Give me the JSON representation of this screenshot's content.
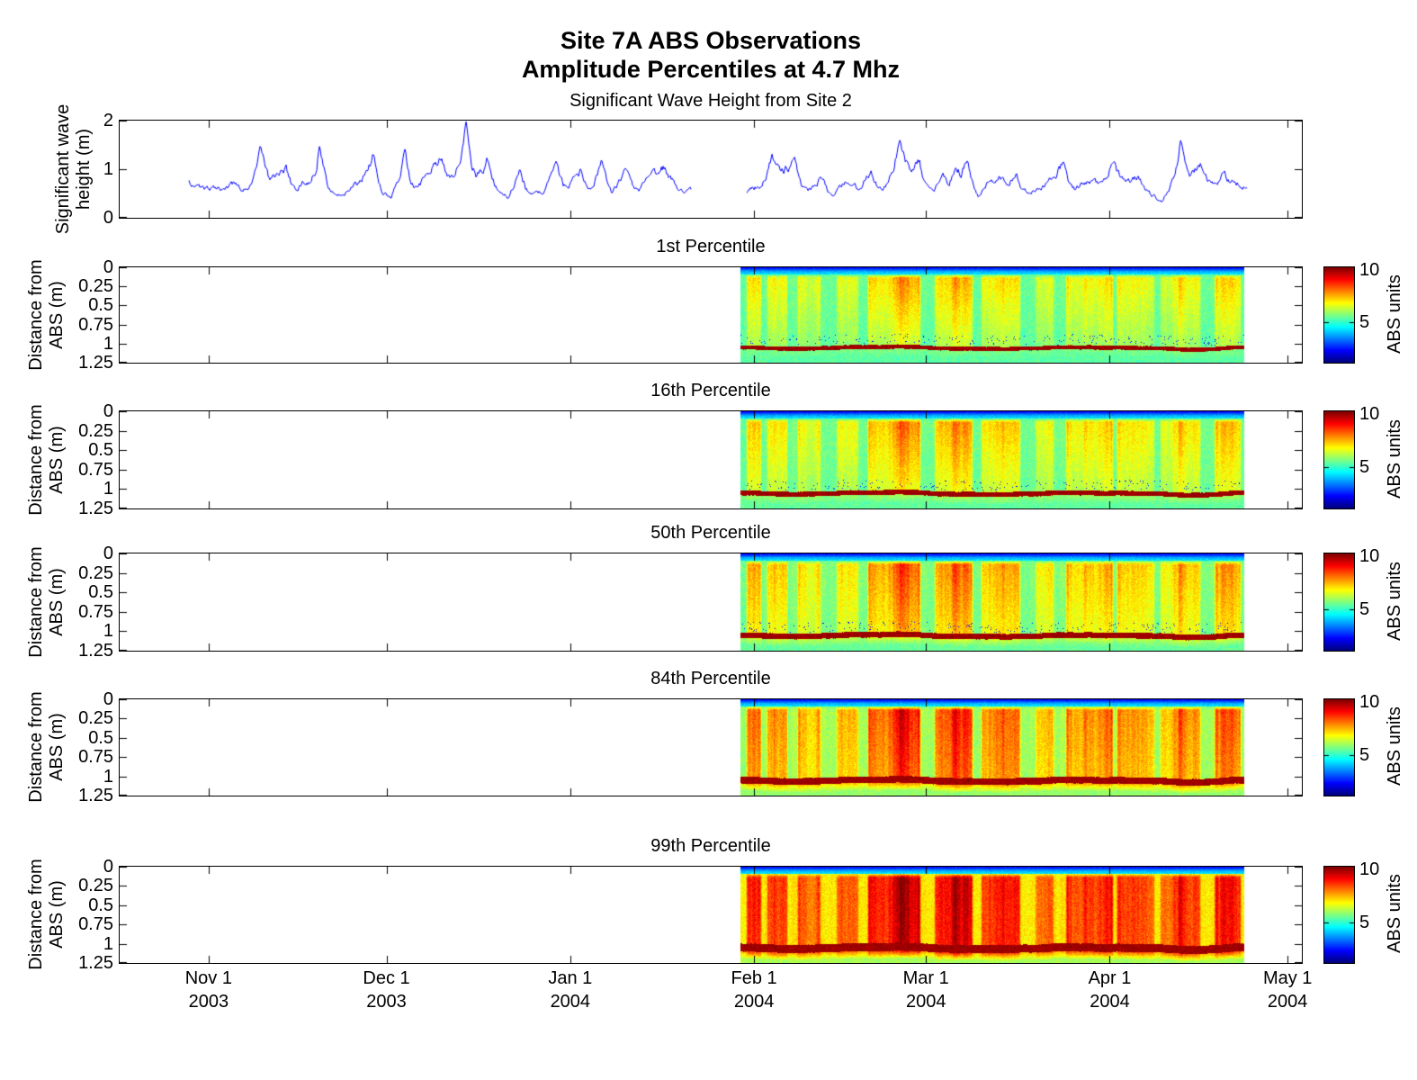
{
  "figure": {
    "title_line1": "Site 7A ABS Observations",
    "title_line2": "Amplitude Percentiles at 4.7 Mhz"
  },
  "wave_panel": {
    "title": "Significant Wave Height from Site 2",
    "ylabel_line1": "Significant wave",
    "ylabel_line2": "height (m)",
    "ytick_labels": [
      "2",
      "1",
      "0"
    ]
  },
  "heatmap_panels": {
    "titles": [
      "1st Percentile",
      "16th Percentile",
      "50th Percentile",
      "84th Percentile",
      "99th Percentile"
    ],
    "ylabel_line1": "Distance from",
    "ylabel_line2": "ABS (m)",
    "ytick_labels": [
      "0",
      "0.25",
      "0.5",
      "0.75",
      "1",
      "1.25"
    ]
  },
  "colorbar": {
    "tick_top": "10",
    "tick_mid": "5",
    "label": "ABS units"
  },
  "x_axis": {
    "tick_labels": [
      [
        "Nov 1",
        "2003"
      ],
      [
        "Dec 1",
        "2003"
      ],
      [
        "Jan 1",
        "2004"
      ],
      [
        "Feb 1",
        "2004"
      ],
      [
        "Mar 1",
        "2004"
      ],
      [
        "Apr 1",
        "2004"
      ],
      [
        "May 1",
        "2004"
      ]
    ]
  },
  "chart_data": {
    "type": "multi-panel",
    "x_axis": {
      "start_date": "2003-10-17",
      "end_date": "2004-05-03",
      "span_days": 199.4,
      "tick_days": [
        15,
        45,
        76,
        107,
        136,
        167,
        197
      ],
      "tick_dates": [
        "2003-11-01",
        "2003-12-01",
        "2004-01-01",
        "2004-02-01",
        "2004-03-01",
        "2004-04-01",
        "2004-05-01"
      ]
    },
    "wave_series": {
      "type": "line",
      "color": "#0000FF",
      "ylabel": "Significant wave height (m)",
      "ylim": [
        0,
        2
      ],
      "yticks": [
        0,
        1,
        2
      ],
      "x_unit": "days since 2003-10-17",
      "segments": [
        [
          [
            11.7,
            0.75
          ],
          [
            13.5,
            0.62
          ],
          [
            14.7,
            0.58
          ],
          [
            16.5,
            0.66
          ],
          [
            17.8,
            0.6
          ],
          [
            19.5,
            0.68
          ],
          [
            20.8,
            0.55
          ],
          [
            22.3,
            0.72
          ],
          [
            23.1,
            0.95
          ],
          [
            23.8,
            1.45
          ],
          [
            24.8,
            1.0
          ],
          [
            25.3,
            0.78
          ],
          [
            26.6,
            0.9
          ],
          [
            28.1,
            1.0
          ],
          [
            29,
            0.68
          ],
          [
            29.9,
            0.62
          ],
          [
            31.2,
            0.75
          ],
          [
            32.2,
            0.78
          ],
          [
            33.2,
            1.05
          ],
          [
            33.7,
            1.5
          ],
          [
            34.6,
            0.95
          ],
          [
            35.2,
            0.68
          ],
          [
            36.4,
            0.52
          ],
          [
            37.2,
            0.45
          ],
          [
            38.8,
            0.6
          ],
          [
            40.5,
            0.72
          ],
          [
            41.9,
            0.95
          ],
          [
            42.8,
            1.3
          ],
          [
            43.7,
            0.7
          ],
          [
            44.3,
            0.52
          ],
          [
            45.8,
            0.42
          ],
          [
            47.2,
            0.85
          ],
          [
            48.1,
            1.4
          ],
          [
            49,
            0.8
          ],
          [
            49.9,
            0.62
          ],
          [
            51.4,
            0.8
          ],
          [
            52.4,
            0.92
          ],
          [
            54.2,
            1.25
          ],
          [
            55.4,
            0.95
          ],
          [
            56.4,
            0.88
          ],
          [
            57.6,
            1.2
          ],
          [
            58.4,
            1.95
          ],
          [
            59.4,
            1.1
          ],
          [
            60.2,
            0.88
          ],
          [
            61.3,
            1.0
          ],
          [
            62.1,
            1.2
          ],
          [
            63.2,
            0.72
          ],
          [
            64,
            0.5
          ],
          [
            65.6,
            0.42
          ],
          [
            66.7,
            0.7
          ],
          [
            67.5,
            1.05
          ],
          [
            68.5,
            0.62
          ],
          [
            69.3,
            0.5
          ],
          [
            70.6,
            0.48
          ],
          [
            71.6,
            0.55
          ],
          [
            72.8,
            0.82
          ],
          [
            73.6,
            1.0
          ],
          [
            74.8,
            0.68
          ],
          [
            75.7,
            0.58
          ],
          [
            76.9,
            0.8
          ],
          [
            77.7,
            0.95
          ],
          [
            78.8,
            0.62
          ],
          [
            79.7,
            0.58
          ],
          [
            80.6,
            0.9
          ],
          [
            81.2,
            1.15
          ],
          [
            82.2,
            0.68
          ],
          [
            83,
            0.5
          ],
          [
            84.2,
            0.72
          ],
          [
            85.3,
            0.95
          ],
          [
            86.5,
            0.68
          ],
          [
            87.6,
            0.55
          ],
          [
            88.8,
            0.72
          ],
          [
            89.8,
            0.9
          ],
          [
            91,
            0.95
          ],
          [
            92.1,
            1.05
          ],
          [
            93.3,
            0.75
          ],
          [
            94.4,
            0.6
          ],
          [
            95.5,
            0.58
          ],
          [
            96.4,
            0.55
          ]
        ],
        [
          [
            105.8,
            0.55
          ],
          [
            106.8,
            0.62
          ],
          [
            108,
            0.65
          ],
          [
            109,
            0.9
          ],
          [
            110,
            1.25
          ],
          [
            111,
            1.0
          ],
          [
            112.1,
            0.95
          ],
          [
            113.1,
            1.1
          ],
          [
            114.1,
            1.15
          ],
          [
            115,
            0.7
          ],
          [
            116.1,
            0.5
          ],
          [
            117.2,
            0.65
          ],
          [
            118.2,
            0.85
          ],
          [
            119.2,
            0.6
          ],
          [
            120.2,
            0.45
          ],
          [
            121.3,
            0.6
          ],
          [
            122.5,
            0.75
          ],
          [
            123.6,
            0.65
          ],
          [
            124.7,
            0.6
          ],
          [
            125.7,
            0.8
          ],
          [
            126.7,
            1.0
          ],
          [
            127.6,
            0.7
          ],
          [
            128.5,
            0.55
          ],
          [
            129.5,
            0.7
          ],
          [
            130.5,
            1.0
          ],
          [
            131.6,
            1.65
          ],
          [
            132.5,
            1.2
          ],
          [
            133.4,
            1.0
          ],
          [
            134.3,
            1.1
          ],
          [
            134.9,
            1.15
          ],
          [
            135.9,
            0.7
          ],
          [
            136.9,
            0.55
          ],
          [
            137.8,
            0.65
          ],
          [
            138.8,
            0.8
          ],
          [
            139.9,
            0.7
          ],
          [
            141,
            1.1
          ],
          [
            142,
            0.9
          ],
          [
            142.9,
            1.2
          ],
          [
            143.9,
            0.7
          ],
          [
            144.9,
            0.45
          ],
          [
            145.8,
            0.55
          ],
          [
            146.7,
            0.75
          ],
          [
            147.9,
            0.8
          ],
          [
            149,
            0.85
          ],
          [
            150.1,
            0.75
          ],
          [
            151.3,
            0.95
          ],
          [
            152.2,
            0.6
          ],
          [
            153.1,
            0.5
          ],
          [
            154.1,
            0.55
          ],
          [
            155.1,
            0.65
          ],
          [
            156.2,
            0.7
          ],
          [
            157.3,
            0.8
          ],
          [
            158.2,
            0.95
          ],
          [
            159.2,
            1.1
          ],
          [
            160.1,
            0.75
          ],
          [
            161.1,
            0.6
          ],
          [
            162.2,
            0.7
          ],
          [
            163.4,
            0.8
          ],
          [
            164.3,
            0.72
          ],
          [
            165.2,
            0.7
          ],
          [
            166.4,
            0.9
          ],
          [
            167.6,
            1.15
          ],
          [
            168.7,
            0.85
          ],
          [
            169.8,
            0.7
          ],
          [
            170.7,
            0.75
          ],
          [
            171.7,
            0.85
          ],
          [
            172.7,
            0.6
          ],
          [
            173.7,
            0.5
          ],
          [
            174.7,
            0.42
          ],
          [
            175.8,
            0.35
          ],
          [
            176.6,
            0.5
          ],
          [
            177.4,
            0.7
          ],
          [
            178.4,
            1.1
          ],
          [
            178.9,
            1.6
          ],
          [
            179.6,
            1.15
          ],
          [
            180.4,
            0.9
          ],
          [
            181.4,
            1.0
          ],
          [
            182.4,
            1.1
          ],
          [
            183.4,
            0.85
          ],
          [
            184.4,
            0.7
          ],
          [
            185.3,
            0.8
          ],
          [
            186.2,
            0.95
          ],
          [
            187.1,
            0.8
          ],
          [
            188,
            0.85
          ],
          [
            189.1,
            0.7
          ],
          [
            190.3,
            0.62
          ]
        ]
      ]
    },
    "abs_heatmaps": {
      "type": "heatmap",
      "colormap": "jet",
      "value_range": [
        0,
        10
      ],
      "colorbar_ticks": [
        5,
        10
      ],
      "value_units": "ABS units",
      "depth_range_m": [
        0,
        1.25
      ],
      "depth_ticks": [
        0,
        0.25,
        0.5,
        0.75,
        1,
        1.25
      ],
      "data_extent_days": [
        104.7,
        189.5
      ],
      "seabed_depth_m": 1.05,
      "surface_band": {
        "depth_m": 0.09,
        "abs": 2.0
      },
      "panels": [
        {
          "title": "1st Percentile",
          "percentile": 1,
          "background_abs": 4.55,
          "streak_peak_abs": 7.9,
          "depth_attenuation": 0.55,
          "seabed_half_thickness_m": 0.027,
          "below_seabed_abs": 4.65,
          "below_tail_boost": 0.5
        },
        {
          "title": "16th Percentile",
          "percentile": 16,
          "background_abs": 4.6,
          "streak_peak_abs": 8.3,
          "depth_attenuation": 0.45,
          "seabed_half_thickness_m": 0.031,
          "below_seabed_abs": 4.7,
          "below_tail_boost": 0.9
        },
        {
          "title": "50th Percentile",
          "percentile": 50,
          "background_abs": 4.7,
          "streak_peak_abs": 8.8,
          "depth_attenuation": 0.33,
          "seabed_half_thickness_m": 0.036,
          "below_seabed_abs": 4.75,
          "below_tail_boost": 1.4
        },
        {
          "title": "84th Percentile",
          "percentile": 84,
          "background_abs": 5.0,
          "streak_peak_abs": 9.6,
          "depth_attenuation": 0.18,
          "seabed_half_thickness_m": 0.043,
          "below_seabed_abs": 5.2,
          "below_tail_boost": 2.6
        },
        {
          "title": "99th Percentile",
          "percentile": 99,
          "background_abs": 6.1,
          "streak_peak_abs": 10.2,
          "depth_attenuation": 0.07,
          "seabed_half_thickness_m": 0.052,
          "below_seabed_abs": 5.4,
          "below_tail_boost": 3.6
        }
      ]
    }
  }
}
